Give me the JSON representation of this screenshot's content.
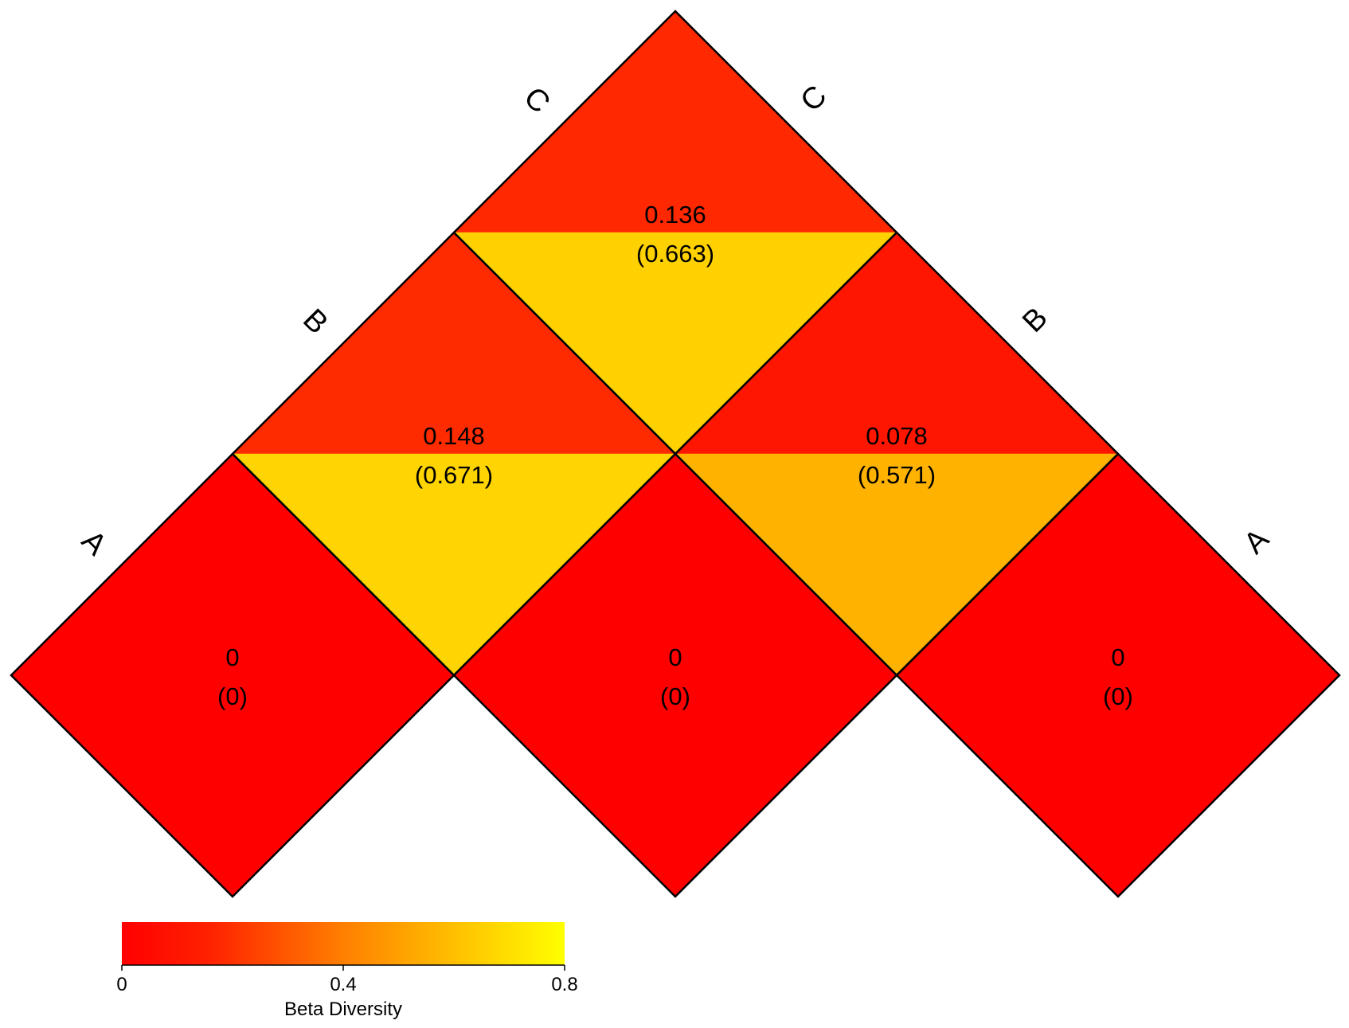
{
  "chart_data": {
    "type": "heatmap",
    "layout": "triangular-diamond",
    "labels": [
      "A",
      "B",
      "C"
    ],
    "cells": [
      {
        "row": "A",
        "col": "A",
        "value": 0,
        "upper_value": 0,
        "upper_label": "0",
        "lower_value": 0,
        "lower_label": "(0)"
      },
      {
        "row": "B",
        "col": "B",
        "value": 0,
        "upper_value": 0,
        "upper_label": "0",
        "lower_value": 0,
        "lower_label": "(0)"
      },
      {
        "row": "C",
        "col": "C",
        "value": 0,
        "upper_value": 0,
        "upper_label": "0",
        "lower_value": 0,
        "lower_label": "(0)"
      },
      {
        "row": "A",
        "col": "B",
        "upper_value": 0.148,
        "upper_label": "0.148",
        "lower_value": 0.671,
        "lower_label": "(0.671)"
      },
      {
        "row": "B",
        "col": "C",
        "upper_value": 0.078,
        "upper_label": "0.078",
        "lower_value": 0.571,
        "lower_label": "(0.571)"
      },
      {
        "row": "A",
        "col": "C",
        "upper_value": 0.136,
        "upper_label": "0.136",
        "lower_value": 0.663,
        "lower_label": "(0.663)"
      }
    ],
    "legend": {
      "title": "Beta Diversity",
      "min": 0,
      "max": 0.8,
      "ticks": [
        "0",
        "0.4",
        "0.8"
      ],
      "color_low": "#ff0000",
      "color_high": "#ffff00"
    }
  }
}
